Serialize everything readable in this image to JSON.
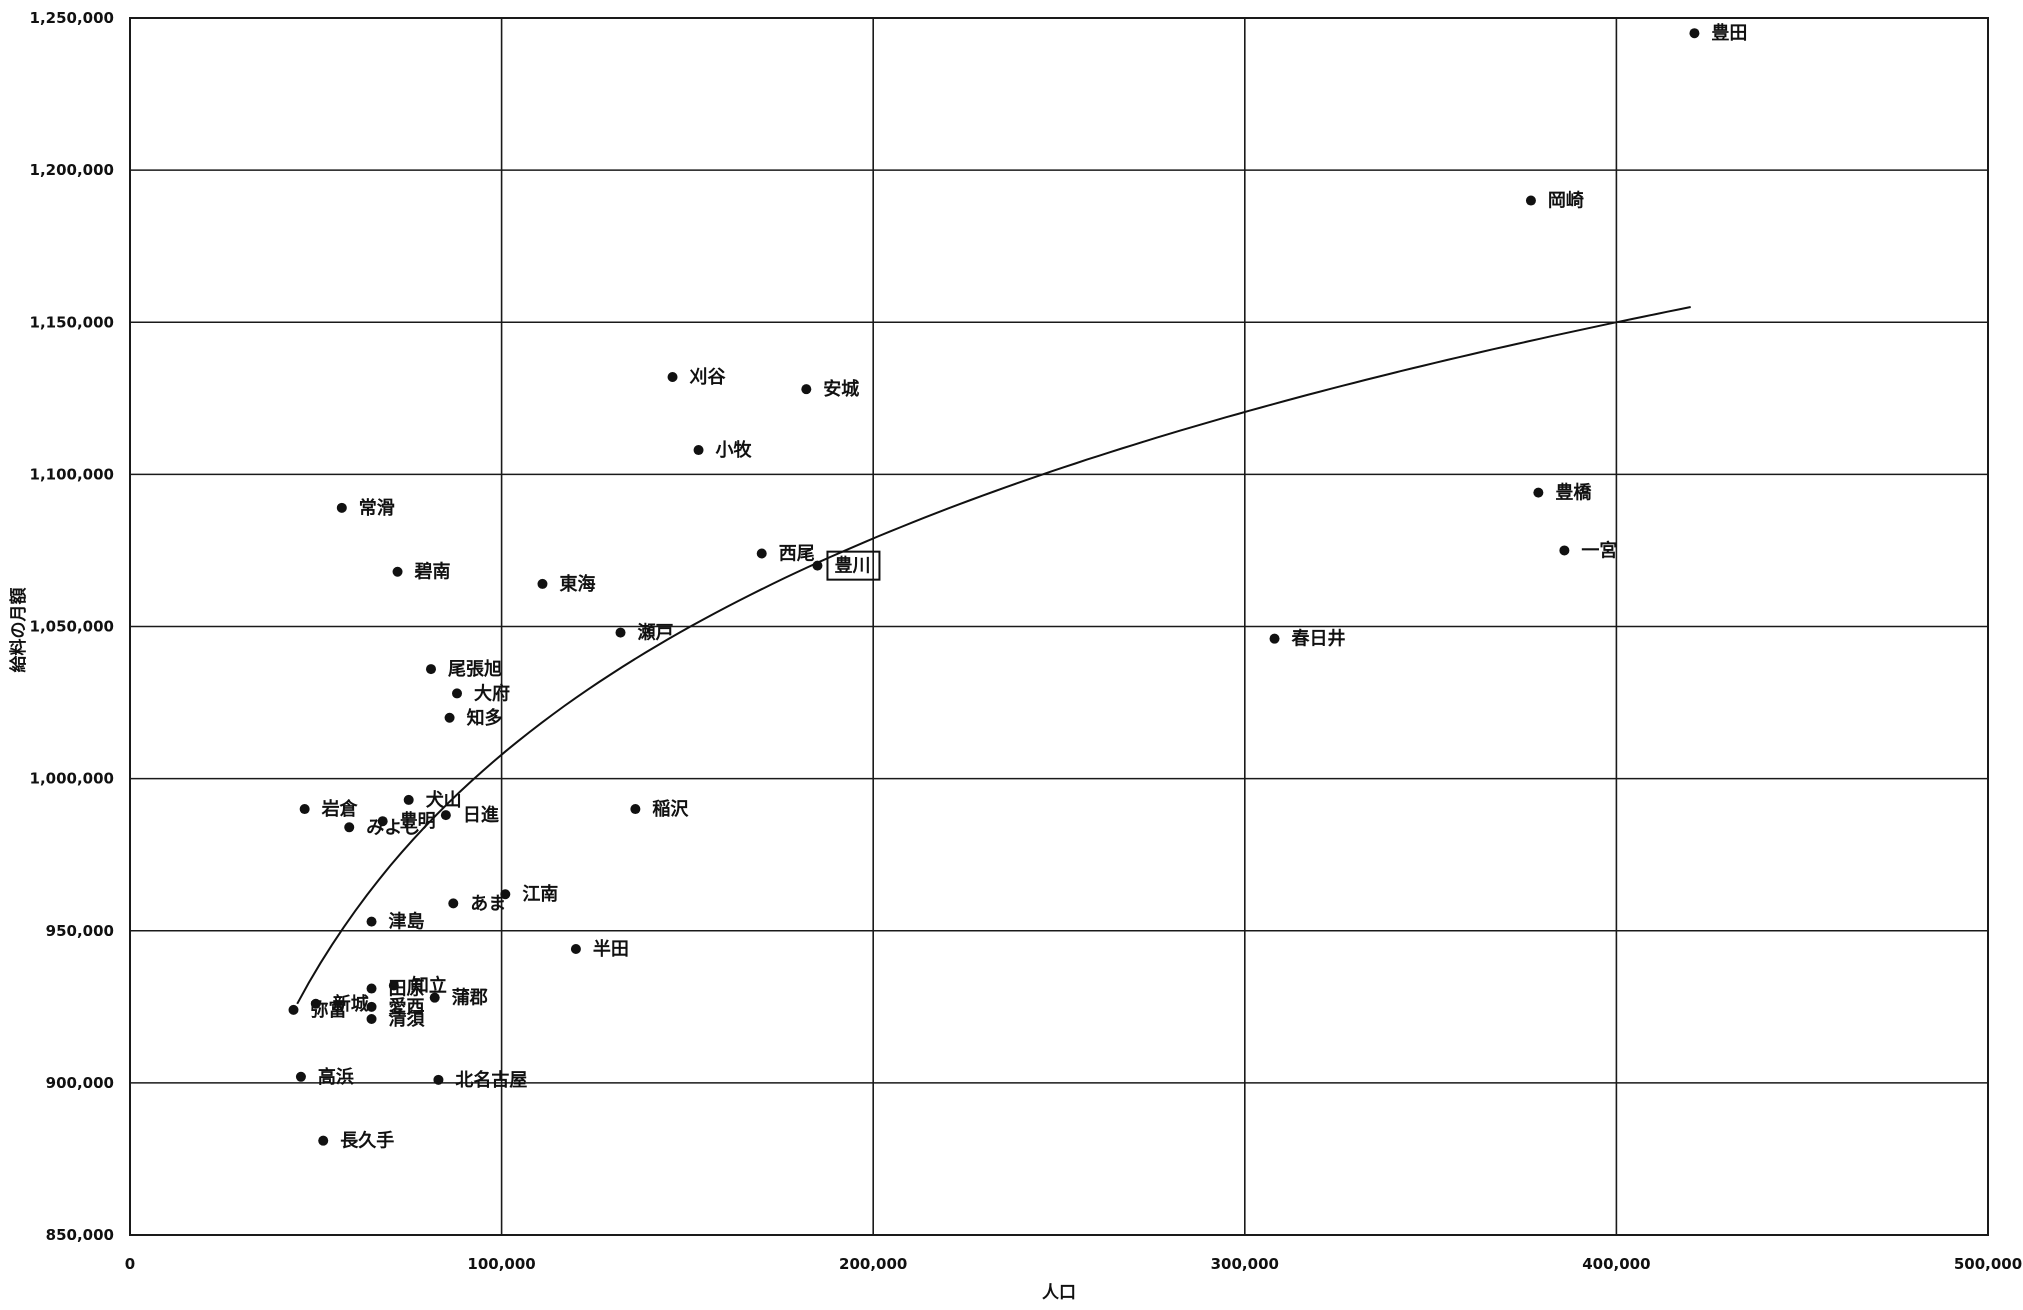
{
  "chart_data": {
    "type": "scatter",
    "xlabel": "人口",
    "ylabel": "給料の月額",
    "xlim": [
      0,
      500000
    ],
    "ylim": [
      850000,
      1250000
    ],
    "x_ticks": [
      0,
      100000,
      200000,
      300000,
      400000,
      500000
    ],
    "x_tick_labels": [
      "0",
      "100,000",
      "200,000",
      "300,000",
      "400,000",
      "500,000"
    ],
    "y_ticks": [
      850000,
      900000,
      950000,
      1000000,
      1050000,
      1100000,
      1150000,
      1200000,
      1250000
    ],
    "y_tick_labels": [
      "850,000",
      "900,000",
      "950,000",
      "1,000,000",
      "1,050,000",
      "1,100,000",
      "1,150,000",
      "1,200,000",
      "1,250,000"
    ],
    "grid": true,
    "highlight": "豊川",
    "trendline": {
      "type": "logarithmic",
      "x_start": 45000,
      "x_end": 420000,
      "y_start": 926000,
      "y_end": 1155000
    },
    "points": [
      {
        "name": "豊田",
        "x": 421000,
        "y": 1245000
      },
      {
        "name": "岡崎",
        "x": 377000,
        "y": 1190000
      },
      {
        "name": "刈谷",
        "x": 146000,
        "y": 1132000
      },
      {
        "name": "安城",
        "x": 182000,
        "y": 1128000
      },
      {
        "name": "小牧",
        "x": 153000,
        "y": 1108000
      },
      {
        "name": "豊橋",
        "x": 379000,
        "y": 1094000
      },
      {
        "name": "常滑",
        "x": 57000,
        "y": 1089000
      },
      {
        "name": "一宮",
        "x": 386000,
        "y": 1075000
      },
      {
        "name": "西尾",
        "x": 170000,
        "y": 1074000
      },
      {
        "name": "豊川",
        "x": 185000,
        "y": 1070000
      },
      {
        "name": "碧南",
        "x": 72000,
        "y": 1068000
      },
      {
        "name": "東海",
        "x": 111000,
        "y": 1064000
      },
      {
        "name": "瀬戸",
        "x": 132000,
        "y": 1048000
      },
      {
        "name": "春日井",
        "x": 308000,
        "y": 1046000
      },
      {
        "name": "尾張旭",
        "x": 81000,
        "y": 1036000
      },
      {
        "name": "大府",
        "x": 88000,
        "y": 1028000
      },
      {
        "name": "知多",
        "x": 86000,
        "y": 1020000
      },
      {
        "name": "日進",
        "x": 85000,
        "y": 988000
      },
      {
        "name": "犬山",
        "x": 75000,
        "y": 993000
      },
      {
        "name": "岩倉",
        "x": 47000,
        "y": 990000
      },
      {
        "name": "稲沢",
        "x": 136000,
        "y": 990000
      },
      {
        "name": "豊明",
        "x": 68000,
        "y": 986000
      },
      {
        "name": "みよし",
        "x": 59000,
        "y": 984000
      },
      {
        "name": "江南",
        "x": 101000,
        "y": 962000
      },
      {
        "name": "あま",
        "x": 87000,
        "y": 959000
      },
      {
        "name": "津島",
        "x": 65000,
        "y": 953000
      },
      {
        "name": "半田",
        "x": 120000,
        "y": 944000
      },
      {
        "name": "知立",
        "x": 71000,
        "y": 932000
      },
      {
        "name": "田原",
        "x": 65000,
        "y": 931000
      },
      {
        "name": "蒲郡",
        "x": 82000,
        "y": 928000
      },
      {
        "name": "新城",
        "x": 50000,
        "y": 926000
      },
      {
        "name": "愛西",
        "x": 65000,
        "y": 925000
      },
      {
        "name": "弥富",
        "x": 44000,
        "y": 924000
      },
      {
        "name": "清須",
        "x": 65000,
        "y": 921000
      },
      {
        "name": "高浜",
        "x": 46000,
        "y": 902000
      },
      {
        "name": "北名古屋",
        "x": 83000,
        "y": 901000
      },
      {
        "name": "長久手",
        "x": 52000,
        "y": 881000
      }
    ]
  }
}
